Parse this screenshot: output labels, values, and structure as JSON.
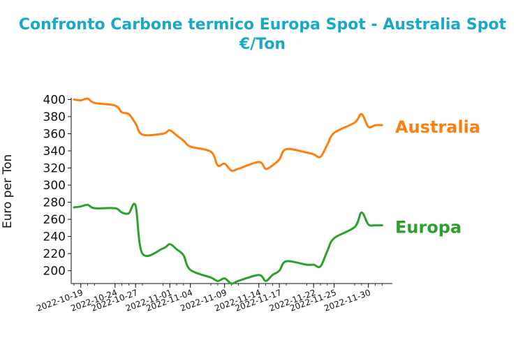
{
  "chart_data": {
    "type": "line",
    "title": "Confronto Carbone termico Europa Spot - Australia Spot",
    "subtitle": "€/Ton",
    "xlabel": "",
    "ylabel": "Euro per Ton",
    "ylim": [
      185,
      402
    ],
    "yticks": [
      200,
      220,
      240,
      260,
      280,
      300,
      320,
      340,
      360,
      380,
      400
    ],
    "xtick_labels": [
      "2022-10-19",
      "2022-10-24",
      "2022-10-27",
      "2022-11-01",
      "2022-11-04",
      "2022-11-09",
      "2022-11-14",
      "2022-11-17",
      "2022-11-22",
      "2022-11-25",
      "2022-11-30"
    ],
    "grid": false,
    "legend": "direct labels at line ends",
    "x": [
      "2022-10-18",
      "2022-10-19",
      "2022-10-20",
      "2022-10-21",
      "2022-10-24",
      "2022-10-25",
      "2022-10-26",
      "2022-10-27",
      "2022-10-28",
      "2022-10-31",
      "2022-11-01",
      "2022-11-02",
      "2022-11-03",
      "2022-11-04",
      "2022-11-07",
      "2022-11-08",
      "2022-11-09",
      "2022-11-10",
      "2022-11-11",
      "2022-11-14",
      "2022-11-15",
      "2022-11-16",
      "2022-11-17",
      "2022-11-18",
      "2022-11-21",
      "2022-11-22",
      "2022-11-23",
      "2022-11-24",
      "2022-11-25",
      "2022-11-28",
      "2022-11-29",
      "2022-11-30",
      "2022-12-01",
      "2022-12-02"
    ],
    "series": [
      {
        "name": "Australia",
        "color": "#ff7f0e",
        "values": [
          400,
          399,
          401,
          396,
          393,
          385,
          383,
          372,
          359,
          360,
          364,
          358,
          352,
          345,
          339,
          323,
          325,
          317,
          319,
          327,
          319,
          323,
          330,
          342,
          338,
          336,
          333,
          347,
          361,
          373,
          383,
          368,
          370,
          370
        ]
      },
      {
        "name": "Europa",
        "color": "#2ca02c",
        "values": [
          274,
          275,
          277,
          273,
          273,
          268,
          267,
          276,
          220,
          226,
          231,
          225,
          218,
          201,
          192,
          188,
          191,
          185,
          188,
          195,
          188,
          195,
          200,
          211,
          207,
          207,
          205,
          223,
          238,
          251,
          268,
          254,
          253,
          253
        ]
      }
    ]
  }
}
